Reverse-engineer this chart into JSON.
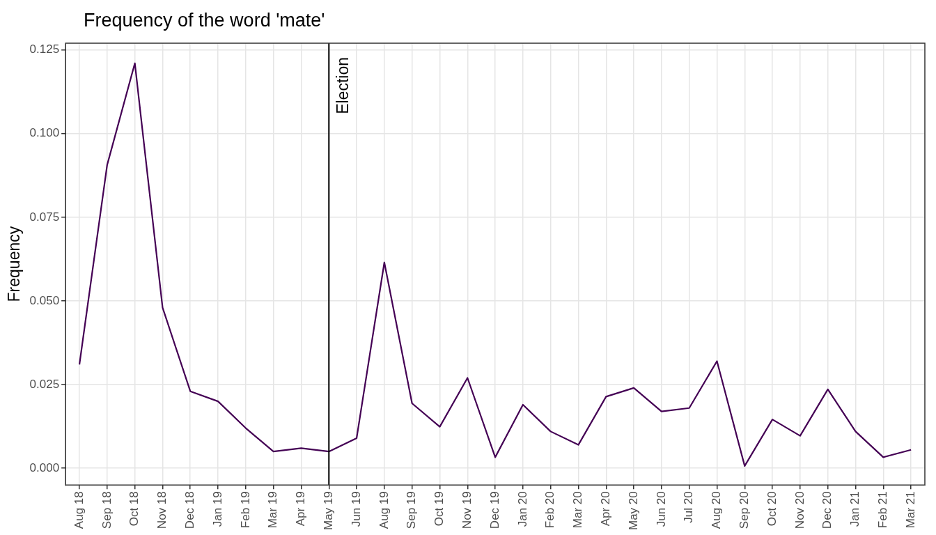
{
  "chart_data": {
    "type": "line",
    "title": "Frequency of the word 'mate'",
    "ylabel": "Frequency",
    "categories": [
      "Aug 18",
      "Sep 18",
      "Oct 18",
      "Nov 18",
      "Dec 18",
      "Jan 19",
      "Feb 19",
      "Mar 19",
      "Apr 19",
      "May 19",
      "Jun 19",
      "Aug 19",
      "Sep 19",
      "Oct 19",
      "Nov 19",
      "Dec 19",
      "Jan 20",
      "Feb 20",
      "Mar 20",
      "Apr 20",
      "May 20",
      "Jun 20",
      "Jul 20",
      "Aug 20",
      "Sep 20",
      "Oct 20",
      "Nov 20",
      "Dec 20",
      "Jan 21",
      "Feb 21",
      "Mar 21"
    ],
    "series": [
      {
        "color": "#440154",
        "values": [
          0.031,
          0.0906,
          0.121,
          0.048,
          0.023,
          0.02,
          0.012,
          0.005,
          0.006,
          0.005,
          0.009,
          0.0615,
          0.0194,
          0.0124,
          0.027,
          0.0033,
          0.019,
          0.011,
          0.007,
          0.0214,
          0.024,
          0.017,
          0.018,
          0.032,
          0.0007,
          0.0146,
          0.0097,
          0.0236,
          0.011,
          0.0033,
          0.0055
        ]
      }
    ],
    "ylim": [
      -0.005,
      0.127
    ],
    "yticks": [
      {
        "value": 0,
        "label": "0.000"
      },
      {
        "value": 0.025,
        "label": "0.025"
      },
      {
        "value": 0.05,
        "label": "0.050"
      },
      {
        "value": 0.075,
        "label": "0.075"
      },
      {
        "value": 0.1,
        "label": "0.100"
      },
      {
        "value": 0.125,
        "label": "0.125"
      }
    ],
    "ref_lines": [
      {
        "axis": "x",
        "value": "May 19",
        "label": "Election",
        "color": "#000000"
      }
    ],
    "grid": true,
    "legend": false,
    "marker": "none",
    "line_style": "solid"
  }
}
